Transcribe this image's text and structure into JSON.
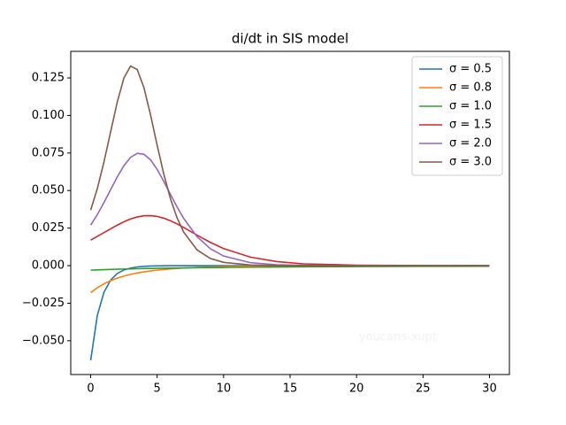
{
  "chart_data": {
    "type": "line",
    "title": "di/dt in SIS model",
    "x": [
      0,
      0.5,
      1,
      1.5,
      2,
      2.5,
      3,
      3.5,
      4,
      4.5,
      5,
      5.5,
      6,
      6.5,
      7,
      8,
      9,
      10,
      12,
      14,
      16,
      20,
      25,
      30
    ],
    "series": [
      {
        "name": "σ = 0.5",
        "color": "#1f77b4",
        "values": [
          -0.063,
          -0.0331,
          -0.0177,
          -0.0096,
          -0.0052,
          -0.0029,
          -0.0016,
          -0.00086,
          -0.00047,
          -0.00026,
          -0.00014,
          -8e-05,
          -4e-05,
          -2e-05,
          -1e-05,
          0,
          0,
          0,
          0,
          0,
          0,
          0,
          0,
          0
        ]
      },
      {
        "name": "σ = 0.8",
        "color": "#ff7f0e",
        "values": [
          -0.018,
          -0.0147,
          -0.0121,
          -0.01,
          -0.0083,
          -0.007,
          -0.0058,
          -0.0049,
          -0.0042,
          -0.0035,
          -0.003,
          -0.0026,
          -0.0022,
          -0.0019,
          -0.0016,
          -0.0012,
          -0.0009,
          -0.0006,
          -0.0003,
          -0.0002,
          -0.0001,
          -3e-05,
          0,
          0
        ]
      },
      {
        "name": "σ = 1.0",
        "color": "#2ca02c",
        "values": [
          -0.003,
          -0.00283,
          -0.00267,
          -0.00253,
          -0.00239,
          -0.00227,
          -0.00215,
          -0.00205,
          -0.00195,
          -0.00186,
          -0.00178,
          -0.0017,
          -0.00162,
          -0.00155,
          -0.00149,
          -0.00137,
          -0.00126,
          -0.00117,
          -0.00101,
          -0.00089,
          -0.00078,
          -0.00062,
          -0.00048,
          -0.00038
        ]
      },
      {
        "name": "σ = 1.5",
        "color": "#d62728",
        "values": [
          0.017,
          0.0195,
          0.022,
          0.0245,
          0.027,
          0.0292,
          0.0311,
          0.0324,
          0.0332,
          0.0333,
          0.0328,
          0.0316,
          0.0299,
          0.0278,
          0.0254,
          0.0203,
          0.0155,
          0.0114,
          0.0057,
          0.0027,
          0.0012,
          0.0003,
          3e-05,
          0
        ]
      },
      {
        "name": "σ = 2.0",
        "color": "#9467bd",
        "values": [
          0.027,
          0.034,
          0.042,
          0.0506,
          0.0591,
          0.0666,
          0.0721,
          0.0748,
          0.0742,
          0.0705,
          0.0641,
          0.0561,
          0.0475,
          0.0391,
          0.0314,
          0.0193,
          0.0113,
          0.0064,
          0.002,
          0.0006,
          0.0002,
          0,
          0,
          0
        ]
      },
      {
        "name": "σ = 3.0",
        "color": "#8c564b",
        "values": [
          0.037,
          0.0513,
          0.0691,
          0.0891,
          0.109,
          0.125,
          0.1329,
          0.1306,
          0.1187,
          0.1005,
          0.0802,
          0.0609,
          0.0446,
          0.0318,
          0.0223,
          0.0105,
          0.0048,
          0.0022,
          0.00044,
          9e-05,
          2e-05,
          0,
          0,
          0
        ]
      }
    ],
    "xlim": [
      -1.5,
      31.5
    ],
    "ylim": [
      -0.0725,
      0.1427
    ],
    "xticks": [
      0,
      5,
      10,
      15,
      20,
      25,
      30
    ],
    "yticks": [
      {
        "value": -0.05,
        "label": "−0.050"
      },
      {
        "value": -0.025,
        "label": "−0.025"
      },
      {
        "value": 0,
        "label": "0.000"
      },
      {
        "value": 0.025,
        "label": "0.025"
      },
      {
        "value": 0.05,
        "label": "0.050"
      },
      {
        "value": 0.075,
        "label": "0.075"
      },
      {
        "value": 0.1,
        "label": "0.100"
      },
      {
        "value": 0.125,
        "label": "0.125"
      }
    ],
    "legend": "upper right",
    "annotation": "youcans-xupt"
  }
}
